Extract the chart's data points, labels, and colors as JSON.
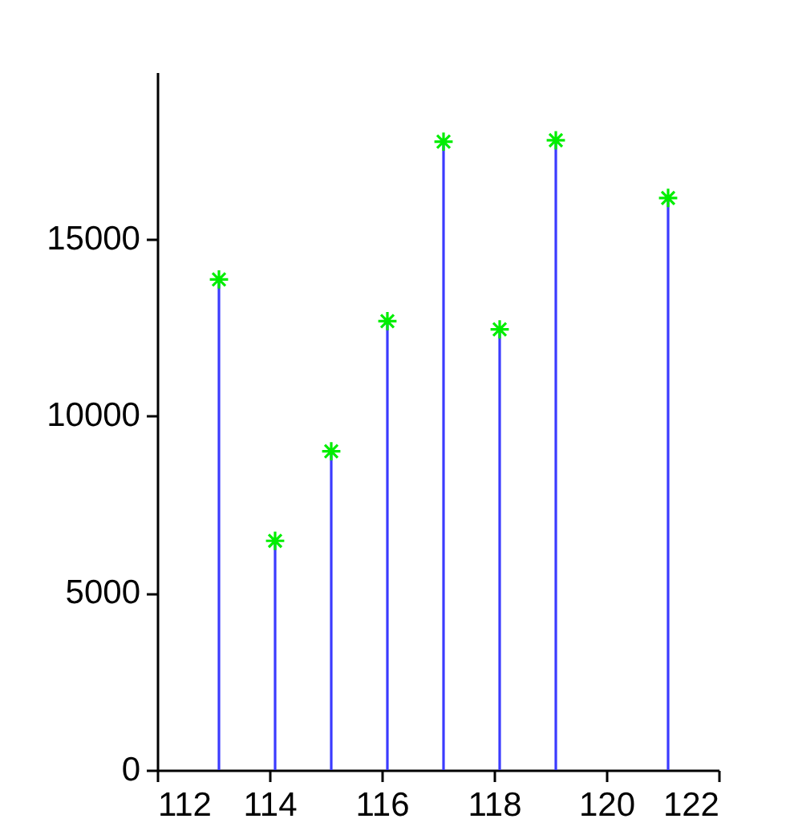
{
  "chart_data": {
    "type": "lollipop",
    "color": "#3b3bff",
    "x": [
      113.1,
      114.1,
      115.1,
      116.1,
      117.1,
      118.1,
      119.1,
      121.1
    ],
    "series": [
      {
        "color": "#00ee00",
        "marker": "cross",
        "values": [
          13850,
          6470,
          9000,
          12670,
          17740,
          12440,
          17780,
          16150
        ]
      }
    ],
    "xlim": [
      112,
      122
    ],
    "xticks": [
      112,
      114,
      116,
      118,
      120,
      122
    ],
    "ylim": [
      0,
      19700
    ],
    "yticks": [
      0,
      5000,
      10000,
      15000
    ],
    "grid": false,
    "legend": false
  }
}
